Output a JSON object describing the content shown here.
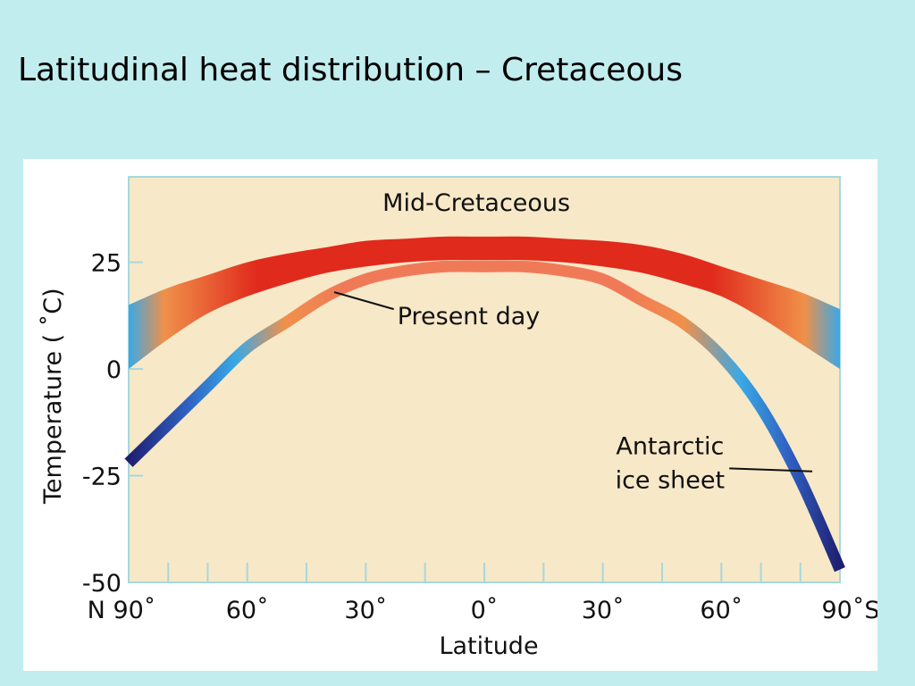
{
  "slide": {
    "title": "Latitudinal heat distribution – Cretaceous"
  },
  "colors": {
    "slide_background": "#c2edee",
    "plot_background": "#f7e8c8",
    "plot_border": "#a6d8df",
    "warm": "#e02a1c",
    "mid": "#f0904a",
    "cool": "#3aa8e6",
    "cold": "#1f1f70"
  },
  "chart_data": {
    "type": "line",
    "xlabel": "Latitude",
    "ylabel": "Temperature ( ˚C)",
    "xlim": [
      -90,
      90
    ],
    "ylim": [
      -50,
      45
    ],
    "grid": false,
    "y_ticks": [
      {
        "value": 25,
        "label": "25"
      },
      {
        "value": 0,
        "label": "0"
      },
      {
        "value": -25,
        "label": "-25"
      },
      {
        "value": -50,
        "label": "-50"
      }
    ],
    "x_tick_marks": [
      -90,
      -80,
      -70,
      -60,
      -45,
      -30,
      -15,
      0,
      15,
      30,
      45,
      60,
      70,
      80,
      90
    ],
    "x_tick_labels": [
      {
        "text": "N 90˚",
        "x": -90
      },
      {
        "text": "60˚",
        "x": -60
      },
      {
        "text": "30˚",
        "x": -30
      },
      {
        "text": "0˚",
        "x": 0
      },
      {
        "text": "30˚",
        "x": 30
      },
      {
        "text": "60˚",
        "x": 60
      },
      {
        "text": "90˚S",
        "x": 90
      }
    ],
    "series": [
      {
        "name": "Mid-Cretaceous",
        "kind": "band",
        "x": [
          -90,
          -80,
          -70,
          -60,
          -50,
          -40,
          -30,
          -20,
          -10,
          0,
          10,
          20,
          30,
          40,
          50,
          60,
          70,
          80,
          90
        ],
        "upper": [
          15,
          19,
          22,
          25,
          27,
          28.5,
          30,
          30.5,
          31,
          31,
          31,
          30.5,
          30,
          29,
          27,
          24,
          21,
          18,
          14
        ],
        "lower": [
          0,
          7,
          13,
          17,
          20,
          22.5,
          24,
          25,
          25.5,
          25.5,
          25.5,
          25,
          24,
          22.5,
          20,
          17,
          12,
          6,
          0
        ]
      },
      {
        "name": "Present day",
        "kind": "line",
        "x": [
          -90,
          -80,
          -70,
          -60,
          -50,
          -40,
          -30,
          -20,
          -10,
          0,
          10,
          20,
          30,
          40,
          50,
          60,
          70,
          80,
          90
        ],
        "y": [
          -22,
          -13,
          -4,
          5,
          11,
          17,
          21,
          23,
          24,
          24,
          24,
          23,
          21,
          16,
          11,
          3,
          -9,
          -26,
          -47
        ]
      }
    ],
    "annotations": [
      {
        "text": "Mid-Cretaceous",
        "target": "Mid-Cretaceous"
      },
      {
        "text": "Present day",
        "target": "Present day",
        "arrow_at": [
          -38,
          18
        ]
      },
      {
        "lines": [
          "Antarctic",
          "ice sheet"
        ],
        "target": "Present day",
        "arrow_at": [
          83,
          -24
        ]
      }
    ]
  }
}
